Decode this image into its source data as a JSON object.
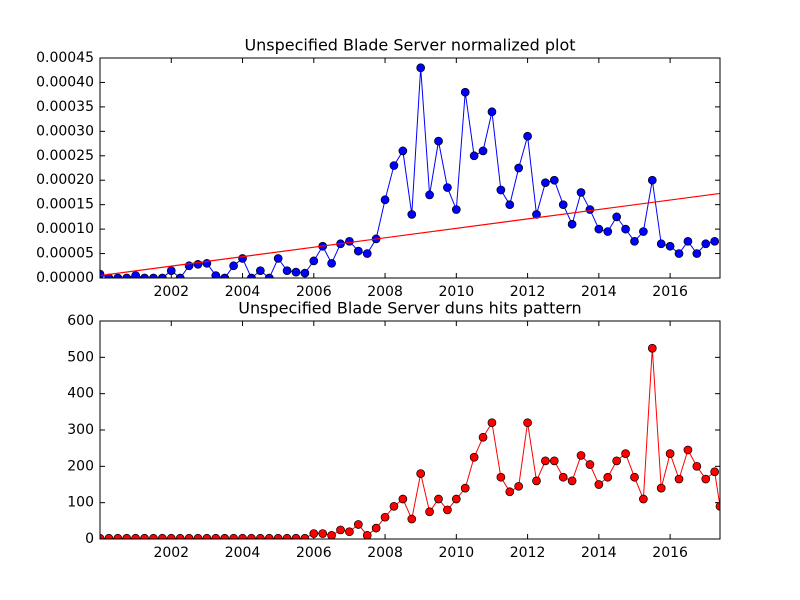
{
  "chart_data": [
    {
      "type": "line",
      "title": "Unspecified Blade Server normalized plot",
      "x": [
        2000,
        2000.25,
        2000.5,
        2000.75,
        2001,
        2001.25,
        2001.5,
        2001.75,
        2002,
        2002.25,
        2002.5,
        2002.75,
        2003,
        2003.25,
        2003.5,
        2003.75,
        2004,
        2004.25,
        2004.5,
        2004.75,
        2005,
        2005.25,
        2005.5,
        2005.75,
        2006,
        2006.25,
        2006.5,
        2006.75,
        2007,
        2007.25,
        2007.5,
        2007.75,
        2008,
        2008.25,
        2008.5,
        2008.75,
        2009,
        2009.25,
        2009.5,
        2009.75,
        2010,
        2010.25,
        2010.5,
        2010.75,
        2011,
        2011.25,
        2011.5,
        2011.75,
        2012,
        2012.25,
        2012.5,
        2012.75,
        2013,
        2013.25,
        2013.5,
        2013.75,
        2014,
        2014.25,
        2014.5,
        2014.75,
        2015,
        2015.25,
        2015.5,
        2015.75,
        2016,
        2016.25,
        2016.5,
        2016.75,
        2017,
        2017.25
      ],
      "series": [
        {
          "color": "#0000ff",
          "marker": true,
          "values": [
            8e-06,
            0,
            0,
            0,
            5e-06,
            0,
            0,
            0,
            1.5e-05,
            0,
            2.5e-05,
            2.8e-05,
            3e-05,
            5e-06,
            0,
            2.5e-05,
            4e-05,
            0,
            1.5e-05,
            0,
            4e-05,
            1.5e-05,
            1.2e-05,
            1e-05,
            3.5e-05,
            6.5e-05,
            3e-05,
            7e-05,
            7.5e-05,
            5.5e-05,
            5e-05,
            8e-05,
            0.00016,
            0.00023,
            0.00026,
            0.00013,
            0.00043,
            0.00017,
            0.00028,
            0.000185,
            0.00014,
            0.00038,
            0.00025,
            0.00026,
            0.00034,
            0.00018,
            0.00015,
            0.000225,
            0.00029,
            0.00013,
            0.000195,
            0.0002,
            0.00015,
            0.00011,
            0.000175,
            0.00014,
            0.0001,
            9.5e-05,
            0.000125,
            0.0001,
            7.5e-05,
            9.5e-05,
            0.0002,
            7e-05,
            6.5e-05,
            5e-05,
            7.5e-05,
            5e-05,
            7e-05,
            7.5e-05
          ]
        }
      ],
      "trend_line": {
        "color": "#ff0000",
        "x": [
          2000,
          2017.4
        ],
        "values": [
          5e-06,
          0.000173
        ]
      },
      "xlim": [
        2000,
        2017.4
      ],
      "xticks": [
        2002,
        2004,
        2006,
        2008,
        2010,
        2012,
        2014,
        2016
      ],
      "ylim": [
        0,
        0.00045
      ],
      "yticks": [
        {
          "value": 0,
          "label": "0.00000"
        },
        {
          "value": 5e-05,
          "label": "0.00005"
        },
        {
          "value": 0.0001,
          "label": "0.00010"
        },
        {
          "value": 0.00015,
          "label": "0.00015"
        },
        {
          "value": 0.0002,
          "label": "0.00020"
        },
        {
          "value": 0.00025,
          "label": "0.00025"
        },
        {
          "value": 0.0003,
          "label": "0.00030"
        },
        {
          "value": 0.00035,
          "label": "0.00035"
        },
        {
          "value": 0.0004,
          "label": "0.00040"
        },
        {
          "value": 0.00045,
          "label": "0.00045"
        }
      ]
    },
    {
      "type": "line",
      "title": "Unspecified Blade Server duns hits pattern",
      "x": [
        2000,
        2000.25,
        2000.5,
        2000.75,
        2001,
        2001.25,
        2001.5,
        2001.75,
        2002,
        2002.25,
        2002.5,
        2002.75,
        2003,
        2003.25,
        2003.5,
        2003.75,
        2004,
        2004.25,
        2004.5,
        2004.75,
        2005,
        2005.25,
        2005.5,
        2005.75,
        2006,
        2006.25,
        2006.5,
        2006.75,
        2007,
        2007.25,
        2007.5,
        2007.75,
        2008,
        2008.25,
        2008.5,
        2008.75,
        2009,
        2009.25,
        2009.5,
        2009.75,
        2010,
        2010.25,
        2010.5,
        2010.75,
        2011,
        2011.25,
        2011.5,
        2011.75,
        2012,
        2012.25,
        2012.5,
        2012.75,
        2013,
        2013.25,
        2013.5,
        2013.75,
        2014,
        2014.25,
        2014.5,
        2014.75,
        2015,
        2015.25,
        2015.5,
        2015.75,
        2016,
        2016.25,
        2016.5,
        2016.75,
        2017,
        2017.25,
        2017.4
      ],
      "series": [
        {
          "color": "#ff0000",
          "marker": true,
          "values": [
            2,
            2,
            2,
            2,
            2,
            2,
            2,
            2,
            2,
            2,
            2,
            2,
            2,
            2,
            2,
            2,
            2,
            2,
            2,
            2,
            2,
            2,
            2,
            2,
            15,
            15,
            10,
            25,
            20,
            40,
            10,
            30,
            60,
            90,
            110,
            55,
            180,
            75,
            110,
            80,
            110,
            140,
            225,
            280,
            320,
            170,
            130,
            145,
            320,
            160,
            215,
            215,
            170,
            160,
            230,
            205,
            150,
            170,
            215,
            235,
            170,
            110,
            525,
            140,
            235,
            165,
            245,
            200,
            165,
            185,
            90
          ]
        }
      ],
      "xlim": [
        2000,
        2017.4
      ],
      "xticks": [
        2002,
        2004,
        2006,
        2008,
        2010,
        2012,
        2014,
        2016
      ],
      "ylim": [
        0,
        600
      ],
      "yticks": [
        0,
        100,
        200,
        300,
        400,
        500,
        600
      ]
    }
  ]
}
